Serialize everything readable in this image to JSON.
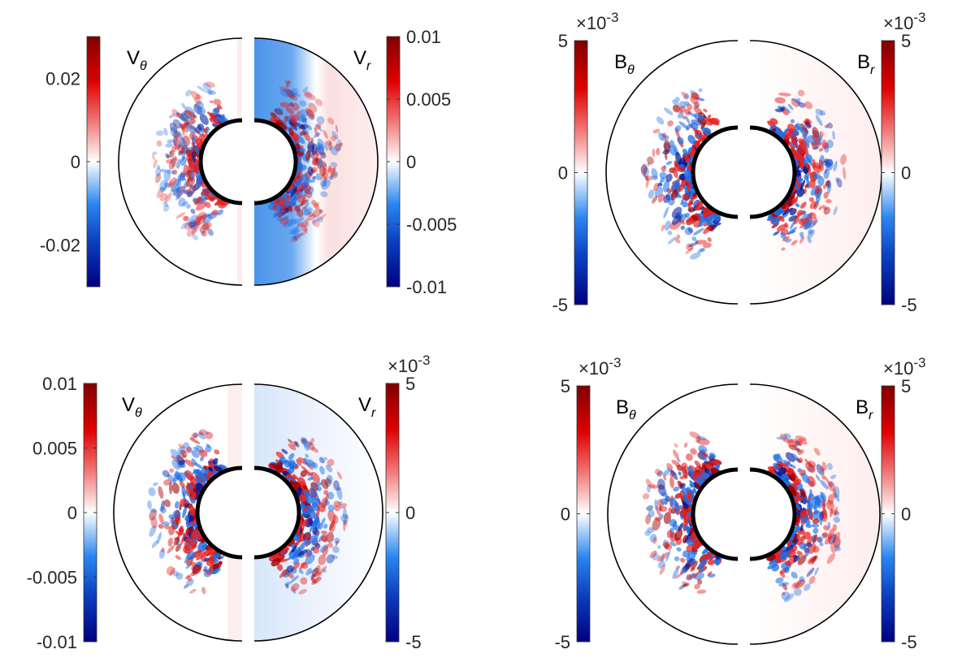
{
  "chart_data": [
    {
      "type": "heatmap",
      "panel": "top-left",
      "left": {
        "label": {
          "main": "V",
          "sub": "θ"
        },
        "clim": [
          -0.03,
          0.03
        ],
        "ticks": [
          "0.02",
          "0",
          "-0.02"
        ],
        "tick_values": [
          0.02,
          0,
          -0.02
        ],
        "exponent": ""
      },
      "right": {
        "label": {
          "main": "V",
          "sub": "r"
        },
        "clim": [
          -0.01,
          0.01
        ],
        "ticks": [
          "0.01",
          "0.005",
          "0",
          "-0.005",
          "-0.01"
        ],
        "tick_values": [
          0.01,
          0.005,
          0,
          -0.005,
          -0.01
        ],
        "exponent": ""
      }
    },
    {
      "type": "heatmap",
      "panel": "top-right",
      "left": {
        "label": {
          "main": "B",
          "sub": "θ"
        },
        "clim": [
          -5,
          5
        ],
        "ticks": [
          "5",
          "0",
          "-5"
        ],
        "tick_values": [
          5,
          0,
          -5
        ],
        "exponent": "×10",
        "exponent_power": "-3"
      },
      "right": {
        "label": {
          "main": "B",
          "sub": "r"
        },
        "clim": [
          -5,
          5
        ],
        "ticks": [
          "5",
          "0",
          "-5"
        ],
        "tick_values": [
          5,
          0,
          -5
        ],
        "exponent": "×10",
        "exponent_power": "-3"
      }
    },
    {
      "type": "heatmap",
      "panel": "bottom-left",
      "left": {
        "label": {
          "main": "V",
          "sub": "θ"
        },
        "clim": [
          -0.01,
          0.01
        ],
        "ticks": [
          "0.01",
          "0.005",
          "0",
          "-0.005",
          "-0.01"
        ],
        "tick_values": [
          0.01,
          0.005,
          0,
          -0.005,
          -0.01
        ],
        "exponent": ""
      },
      "right": {
        "label": {
          "main": "V",
          "sub": "r"
        },
        "clim": [
          -5,
          5
        ],
        "ticks": [
          "5",
          "0",
          "-5"
        ],
        "tick_values": [
          5,
          0,
          -5
        ],
        "exponent": "×10",
        "exponent_power": "-3"
      }
    },
    {
      "type": "heatmap",
      "panel": "bottom-right",
      "left": {
        "label": {
          "main": "B",
          "sub": "θ"
        },
        "clim": [
          -5,
          5
        ],
        "ticks": [
          "5",
          "0",
          "-5"
        ],
        "tick_values": [
          5,
          0,
          -5
        ],
        "exponent": "×10",
        "exponent_power": "-3"
      },
      "right": {
        "label": {
          "main": "B",
          "sub": "r"
        },
        "clim": [
          -5,
          5
        ],
        "ticks": [
          "5",
          "0",
          "-5"
        ],
        "tick_values": [
          5,
          0,
          -5
        ],
        "exponent": "×10",
        "exponent_power": "-3"
      }
    }
  ],
  "colors": {
    "dark_blue": "#00007f",
    "blue": "#1a6ee6",
    "white": "#ffffff",
    "red": "#e60000",
    "dark_red": "#7f0000",
    "outline": "#000000"
  }
}
